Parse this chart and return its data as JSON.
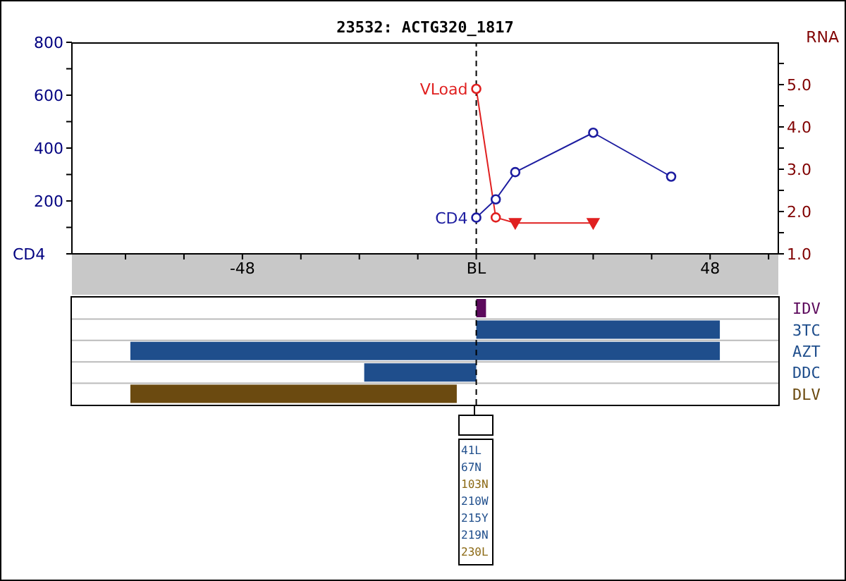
{
  "chart_data": [
    {
      "type": "line",
      "title": "23532: ACTG320_1817",
      "ylabel": "CD4",
      "y2label": "RNA",
      "xlim": [
        -83,
        62
      ],
      "xticks": [
        {
          "value": -72,
          "label": null
        },
        {
          "value": -60,
          "label": null
        },
        -48,
        {
          "value": -36,
          "label": null
        },
        {
          "value": -24,
          "label": null
        },
        {
          "value": -12,
          "label": null
        },
        {
          "value": 0,
          "label": "BL"
        },
        {
          "value": 12,
          "label": null
        },
        {
          "value": 24,
          "label": null
        },
        {
          "value": 36,
          "label": null
        },
        48,
        {
          "value": 60,
          "label": null
        }
      ],
      "ylim": [
        0,
        800
      ],
      "yticks": [
        {
          "value": 0,
          "label": null
        },
        {
          "value": 100,
          "label": null
        },
        200,
        {
          "value": 300,
          "label": null
        },
        400,
        {
          "value": 500,
          "label": null
        },
        600,
        {
          "value": 700,
          "label": null
        },
        800
      ],
      "y2lim": [
        1,
        6
      ],
      "y2ticks": [
        {
          "value": 1,
          "label": "1.0"
        },
        {
          "value": 1.5,
          "label": null
        },
        {
          "value": 2,
          "label": "2.0"
        },
        {
          "value": 2.5,
          "label": null
        },
        {
          "value": 3,
          "label": "3.0"
        },
        {
          "value": 3.5,
          "label": null
        },
        {
          "value": 4,
          "label": "4.0"
        },
        {
          "value": 4.5,
          "label": null
        },
        {
          "value": 5,
          "label": "5.0"
        },
        {
          "value": 5.5,
          "label": null
        }
      ],
      "series": [
        {
          "name": "CD4",
          "type": "line",
          "color": "#1c1ca0",
          "x": [
            0,
            4,
            8,
            24,
            40
          ],
          "values": [
            137,
            206,
            309,
            458,
            292
          ],
          "marker": "circle"
        },
        {
          "name": "VLoad",
          "type": "line",
          "axis": "y2",
          "color": "#e02020",
          "x": [
            0,
            4,
            8,
            24
          ],
          "values": [
            4.9,
            1.86,
            1.73,
            1.73
          ],
          "marker": "none"
        },
        {
          "type": "scatter",
          "axis": "y2",
          "color": "#e02020",
          "x": [
            0,
            4
          ],
          "values": [
            4.9,
            1.86
          ],
          "marker": "circle"
        },
        {
          "type": "scatter",
          "axis": "y2",
          "color": "#e02020",
          "x": [
            8,
            24
          ],
          "values": [
            1.73,
            1.73
          ],
          "marker": "triangle"
        }
      ],
      "ref_lines": [
        {
          "axis": "x",
          "value": 0,
          "line_style": "dashed",
          "color": "#000000"
        }
      ]
    },
    {
      "type": "bar",
      "orientation": "horizontal",
      "categories": [
        "IDV",
        "3TC",
        "AZT",
        "DDC",
        "DLV"
      ],
      "base": [
        0,
        0,
        -71,
        -23,
        -71
      ],
      "values": [
        2,
        50,
        121,
        23,
        67
      ],
      "colors": [
        "#5c0a5c",
        "#1f4e8c",
        "#1f4e8c",
        "#1f4e8c",
        "#6b4a10"
      ],
      "xlim": [
        -83,
        62
      ],
      "tick_labels": "y",
      "grid": "y",
      "ref_lines": [
        {
          "axis": "x",
          "value": 0,
          "line_style": "dashed",
          "color": "#000000"
        }
      ]
    },
    {
      "type": "other",
      "annotations": [
        "41L",
        "67N",
        "103N",
        "210W",
        "215Y",
        "219N",
        "230L"
      ],
      "colors": [
        "#1f4e8c",
        "#1f4e8c",
        "#8b6914",
        "#1f4e8c",
        "#1f4e8c",
        "#1f4e8c",
        "#8b6914"
      ]
    }
  ]
}
